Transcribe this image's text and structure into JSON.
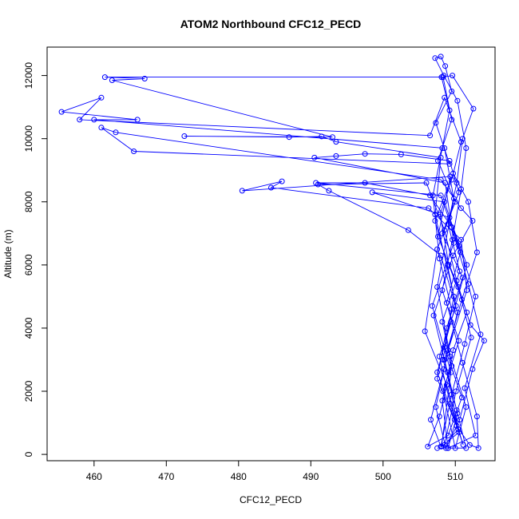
{
  "chart_data": {
    "type": "scatter",
    "title": "ATOM2 Northbound CFC12_PECD",
    "xlabel": "CFC12_PECD",
    "ylabel": "Altitude (m)",
    "xlim": [
      453.5,
      515.5
    ],
    "ylim": [
      -200,
      12900
    ],
    "xticks": [
      460,
      470,
      480,
      490,
      500,
      510
    ],
    "yticks": [
      0,
      2000,
      4000,
      6000,
      8000,
      10000,
      12000
    ],
    "grid": false,
    "legend": "none",
    "series": [
      {
        "color": "#0000ff",
        "marker": "open-circle",
        "connected": true,
        "points": [
          [
            507.5,
            200
          ],
          [
            511.5,
            200
          ],
          [
            510.2,
            1400
          ],
          [
            508.3,
            3000
          ],
          [
            509.5,
            4600
          ],
          [
            507.8,
            6200
          ],
          [
            506.9,
            8200
          ],
          [
            508.2,
            9700
          ],
          [
            509.2,
            10900
          ],
          [
            508.1,
            11950
          ],
          [
            461.5,
            11950
          ],
          [
            467.0,
            11900
          ],
          [
            462.5,
            11850
          ],
          [
            493.0,
            10050
          ],
          [
            472.5,
            10080
          ],
          [
            487.0,
            10050
          ],
          [
            491.5,
            10070
          ],
          [
            493.5,
            9900
          ],
          [
            508.0,
            9400
          ],
          [
            507.2,
            7600
          ],
          [
            509.8,
            5000
          ],
          [
            508.5,
            3400
          ],
          [
            510.9,
            1800
          ],
          [
            509.0,
            600
          ],
          [
            506.2,
            250
          ],
          [
            507.8,
            1200
          ],
          [
            509.5,
            2800
          ],
          [
            508.2,
            4200
          ],
          [
            510.6,
            5800
          ],
          [
            509.0,
            7300
          ],
          [
            510.2,
            8600
          ],
          [
            511.0,
            10000
          ],
          [
            512.5,
            10950
          ],
          [
            509.6,
            12000
          ],
          [
            508.3,
            11950
          ],
          [
            509.5,
            10600
          ],
          [
            507.6,
            9300
          ],
          [
            510.0,
            8000
          ],
          [
            507.5,
            6500
          ],
          [
            505.8,
            3900
          ],
          [
            508.8,
            2200
          ],
          [
            510.5,
            700
          ],
          [
            508.1,
            250
          ],
          [
            509.4,
            2600
          ],
          [
            506.8,
            4700
          ],
          [
            509.8,
            6700
          ],
          [
            508.6,
            8600
          ],
          [
            490.5,
            9400
          ],
          [
            493.5,
            9450
          ],
          [
            497.5,
            9520
          ],
          [
            502.5,
            9500
          ],
          [
            509.2,
            9300
          ],
          [
            510.5,
            8300
          ],
          [
            508.2,
            7000
          ],
          [
            511.0,
            5600
          ],
          [
            508.8,
            4000
          ],
          [
            507.5,
            2400
          ],
          [
            510.2,
            900
          ],
          [
            512.0,
            300
          ],
          [
            513.2,
            200
          ],
          [
            513.0,
            1200
          ],
          [
            511.0,
            2900
          ],
          [
            508.8,
            4800
          ],
          [
            510.7,
            6400
          ],
          [
            508.0,
            8200
          ],
          [
            490.7,
            8600
          ],
          [
            497.5,
            8600
          ],
          [
            506.5,
            8200
          ],
          [
            509.5,
            7200
          ],
          [
            511.8,
            5400
          ],
          [
            513.5,
            3800
          ],
          [
            511.3,
            2100
          ],
          [
            512.8,
            600
          ],
          [
            509.0,
            200
          ],
          [
            508.2,
            1700
          ],
          [
            509.7,
            3300
          ],
          [
            511.6,
            4500
          ],
          [
            509.1,
            6000
          ],
          [
            507.9,
            7600
          ],
          [
            509.5,
            8700
          ],
          [
            510.8,
            9900
          ],
          [
            508.5,
            11300
          ],
          [
            506.5,
            10100
          ],
          [
            458.0,
            10600
          ],
          [
            461.0,
            11300
          ],
          [
            455.5,
            10850
          ],
          [
            466.0,
            10600
          ],
          [
            460.0,
            10600
          ],
          [
            508.5,
            9700
          ],
          [
            509.8,
            8100
          ],
          [
            507.5,
            5300
          ],
          [
            509.3,
            3100
          ],
          [
            511.5,
            1500
          ],
          [
            510.0,
            200
          ],
          [
            508.3,
            2000
          ],
          [
            510.5,
            3600
          ],
          [
            508.2,
            5200
          ],
          [
            509.6,
            6800
          ],
          [
            510.8,
            8400
          ],
          [
            511.5,
            9700
          ],
          [
            510.3,
            11200
          ],
          [
            508.4,
            12000
          ],
          [
            507.2,
            12550
          ],
          [
            508.0,
            12600
          ],
          [
            508.6,
            12300
          ],
          [
            509.5,
            11500
          ],
          [
            507.3,
            10500
          ],
          [
            509.2,
            9200
          ],
          [
            465.5,
            9600
          ],
          [
            461.0,
            10350
          ],
          [
            463.0,
            10200
          ],
          [
            508.0,
            8700
          ],
          [
            510.8,
            7800
          ],
          [
            512.4,
            7400
          ],
          [
            509.7,
            6300
          ],
          [
            507.0,
            4400
          ],
          [
            508.9,
            2600
          ],
          [
            510.4,
            800
          ],
          [
            508.5,
            300
          ],
          [
            510.1,
            2000
          ],
          [
            512.2,
            3700
          ],
          [
            510.4,
            5300
          ],
          [
            507.6,
            6900
          ],
          [
            509.3,
            8800
          ],
          [
            480.5,
            8350
          ],
          [
            486.0,
            8650
          ],
          [
            484.5,
            8450
          ],
          [
            506.3,
            7800
          ],
          [
            510.8,
            6800
          ],
          [
            511.6,
            5200
          ],
          [
            509.0,
            3300
          ],
          [
            507.3,
            1500
          ],
          [
            508.7,
            200
          ],
          [
            510.6,
            1100
          ],
          [
            512.4,
            2700
          ],
          [
            514.0,
            3600
          ],
          [
            512.1,
            4100
          ],
          [
            510.2,
            5500
          ],
          [
            508.5,
            7100
          ],
          [
            506.0,
            8600
          ],
          [
            491.0,
            8550
          ],
          [
            492.5,
            8350
          ],
          [
            503.5,
            7100
          ],
          [
            508.0,
            6300
          ],
          [
            510.3,
            4500
          ],
          [
            508.4,
            2700
          ],
          [
            506.6,
            1100
          ],
          [
            508.0,
            250
          ],
          [
            509.5,
            1900
          ],
          [
            511.3,
            3500
          ],
          [
            512.8,
            5000
          ],
          [
            510.5,
            6600
          ],
          [
            508.5,
            8000
          ],
          [
            498.5,
            8300
          ],
          [
            509.2,
            7500
          ],
          [
            511.6,
            6000
          ],
          [
            509.4,
            4200
          ],
          [
            507.5,
            2600
          ],
          [
            509.9,
            1100
          ],
          [
            511.1,
            300
          ],
          [
            509.3,
            1600
          ],
          [
            507.8,
            3100
          ],
          [
            510.1,
            4700
          ],
          [
            508.9,
            6000
          ],
          [
            507.2,
            7400
          ],
          [
            509.7,
            8900
          ],
          [
            511.8,
            8000
          ],
          [
            513.0,
            6400
          ],
          [
            510.9,
            4900
          ],
          [
            508.5,
            3000
          ],
          [
            510.3,
            1300
          ],
          [
            509.0,
            200
          ]
        ]
      }
    ]
  }
}
